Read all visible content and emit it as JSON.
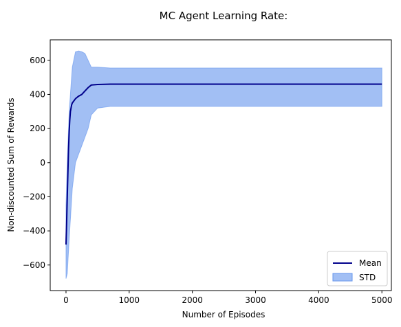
{
  "chart_data": {
    "type": "line",
    "title": "MC Agent Learning Rate:",
    "xlabel": "Number of Episodes",
    "ylabel": "Non-discounted Sum of Rewards",
    "xlim": [
      -250,
      5150
    ],
    "ylim": [
      -750,
      720
    ],
    "x_ticks": [
      0,
      1000,
      2000,
      3000,
      4000,
      5000
    ],
    "y_ticks": [
      -600,
      -400,
      -200,
      0,
      200,
      400,
      600
    ],
    "grid": false,
    "legend_position": "bottom-right",
    "series": [
      {
        "name": "Mean",
        "kind": "line",
        "color": "#00008b",
        "x": [
          0,
          10,
          20,
          30,
          40,
          50,
          60,
          70,
          80,
          90,
          100,
          120,
          150,
          200,
          250,
          300,
          350,
          400,
          500,
          700,
          1000,
          1500,
          2000,
          3000,
          4000,
          5000
        ],
        "y": [
          -480,
          -350,
          -200,
          -60,
          80,
          180,
          250,
          300,
          320,
          340,
          350,
          360,
          375,
          390,
          400,
          420,
          440,
          455,
          458,
          460,
          460,
          460,
          460,
          460,
          460,
          460
        ]
      },
      {
        "name": "STD",
        "kind": "band",
        "color": "#6495ed",
        "x": [
          0,
          20,
          50,
          100,
          150,
          200,
          250,
          300,
          350,
          400,
          500,
          700,
          1000,
          1500,
          2000,
          3000,
          4000,
          5000
        ],
        "upper": [
          -250,
          0,
          300,
          560,
          650,
          655,
          650,
          640,
          600,
          560,
          560,
          555,
          555,
          555,
          555,
          555,
          555,
          555
        ],
        "lower": [
          -680,
          -650,
          -450,
          -150,
          0,
          50,
          100,
          150,
          200,
          280,
          320,
          330,
          330,
          330,
          330,
          330,
          330,
          330
        ]
      }
    ]
  }
}
